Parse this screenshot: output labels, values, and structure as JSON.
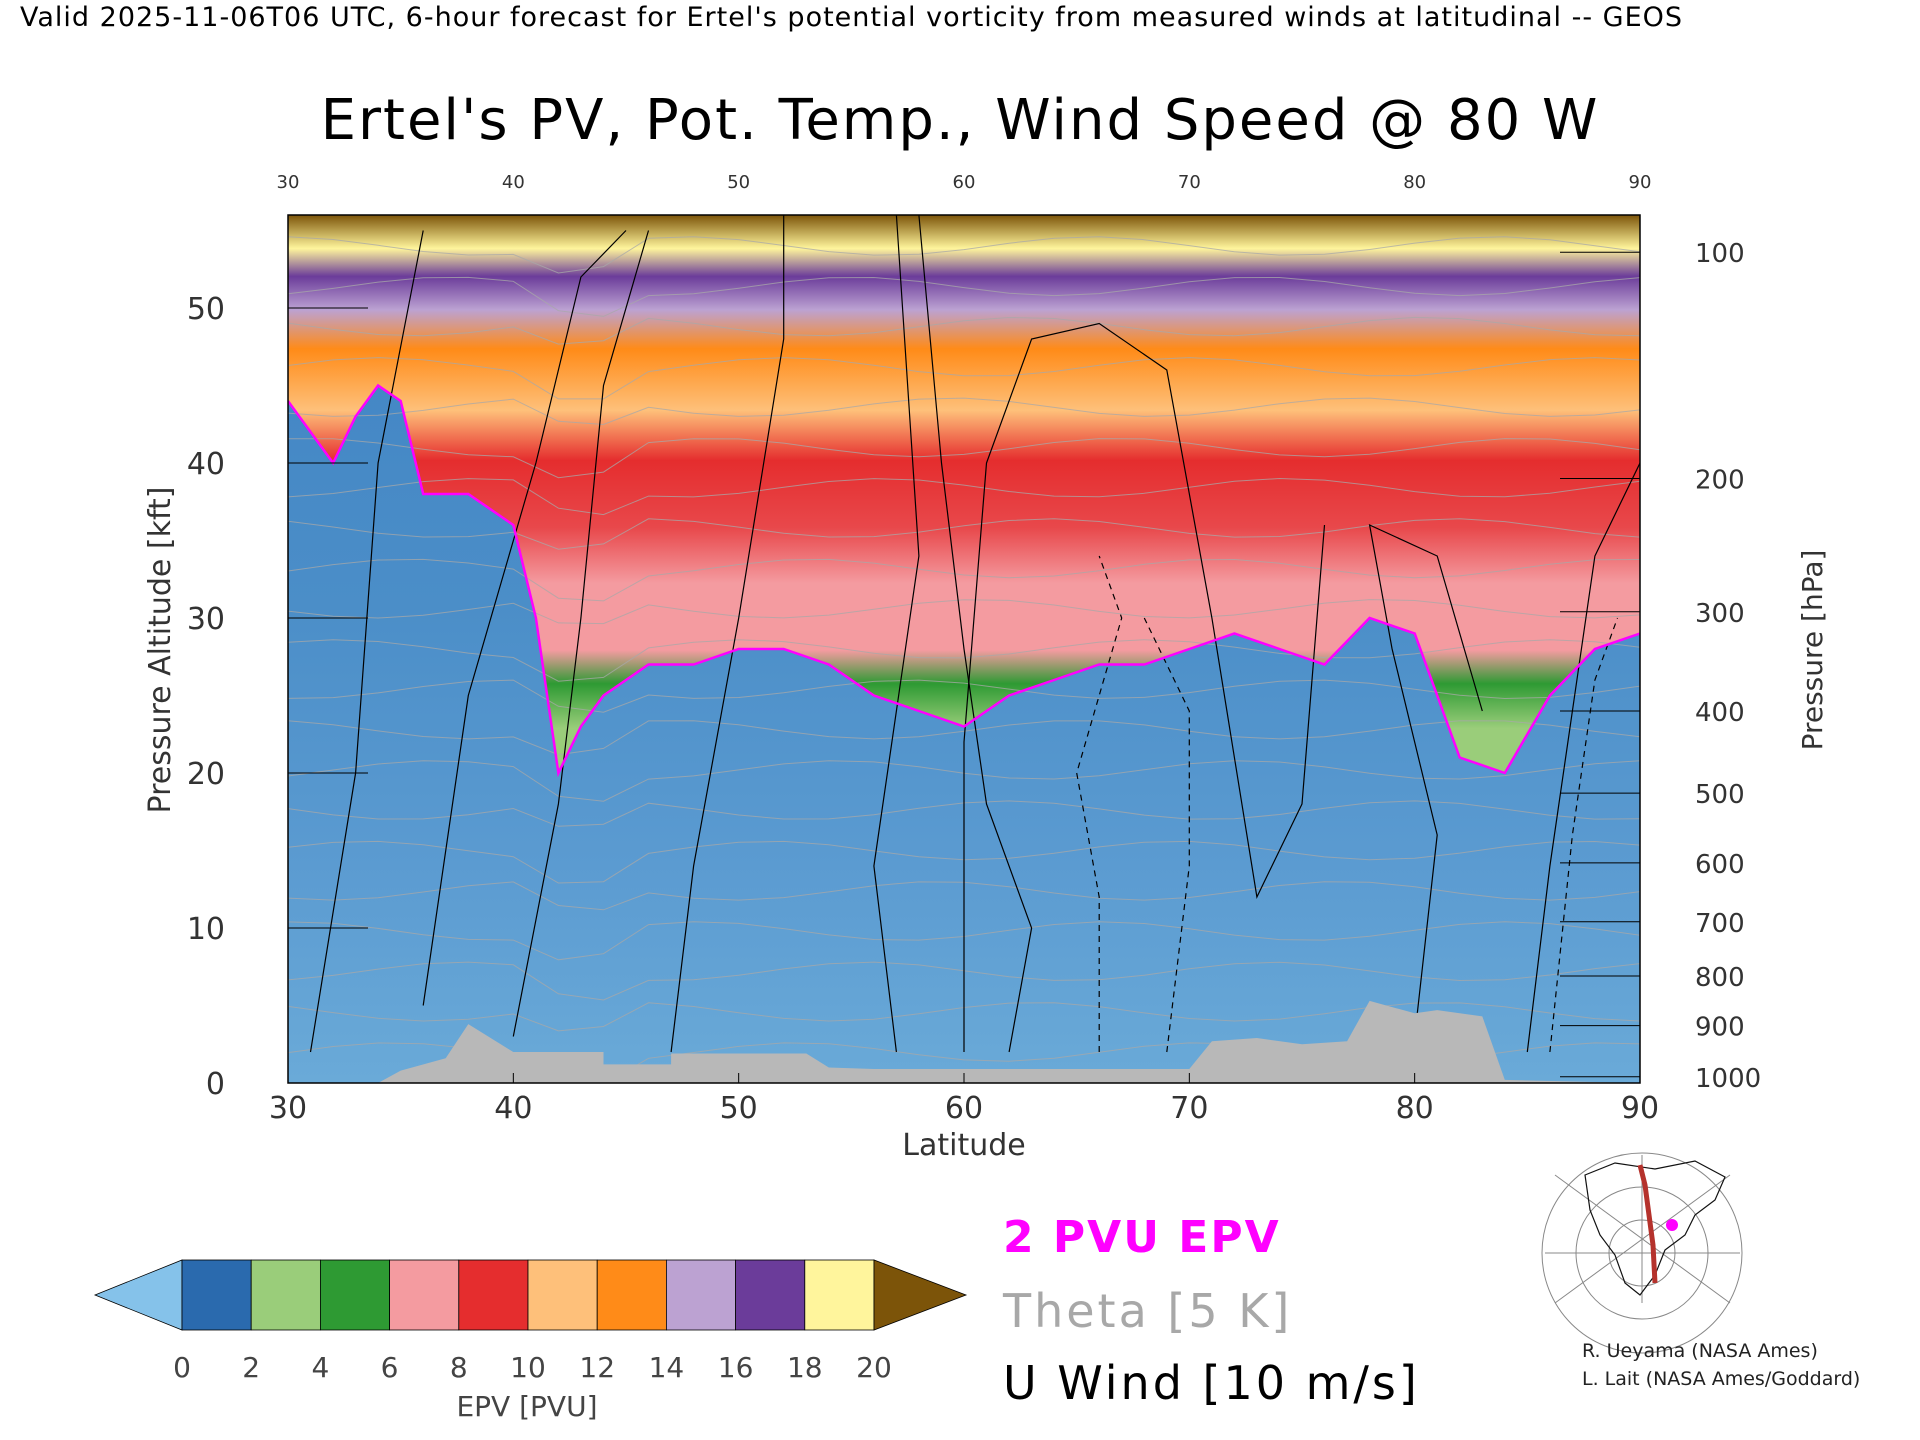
{
  "header": {
    "valid_text": "Valid 2025-11-06T06 UTC, 6-hour forecast for Ertel's potential vorticity from measured winds at latitudinal -- GEOS"
  },
  "chart_data": {
    "type": "heatmap",
    "title": "Ertel's PV, Pot. Temp., Wind Speed @ 80 W",
    "xlabel": "Latitude",
    "ylabel": "Pressure Altitude [kft]",
    "y2label": "Pressure [hPa]",
    "xlim": [
      30,
      90
    ],
    "ylim": [
      0,
      56
    ],
    "x_ticks": [
      "30",
      "40",
      "50",
      "60",
      "70",
      "80",
      "90"
    ],
    "y_ticks": [
      "0",
      "10",
      "20",
      "30",
      "40",
      "50"
    ],
    "y_tick_values": [
      0,
      10,
      20,
      30,
      40,
      50
    ],
    "pressure_ticks": [
      {
        "label": "100",
        "kft": 53.6
      },
      {
        "label": "200",
        "kft": 39.0
      },
      {
        "label": "300",
        "kft": 30.4
      },
      {
        "label": "400",
        "kft": 24.0
      },
      {
        "label": "500",
        "kft": 18.7
      },
      {
        "label": "600",
        "kft": 14.2
      },
      {
        "label": "700",
        "kft": 10.4
      },
      {
        "label": "800",
        "kft": 6.9
      },
      {
        "label": "900",
        "kft": 3.7
      },
      {
        "label": "1000",
        "kft": 0.4
      }
    ],
    "pv_2pvu_contour": {
      "lat": [
        30,
        32,
        33,
        34,
        35,
        36,
        38,
        40,
        41,
        42,
        43,
        44,
        46,
        48,
        50,
        52,
        54,
        56,
        58,
        60,
        62,
        64,
        66,
        68,
        70,
        72,
        74,
        76,
        78,
        80,
        82,
        84,
        86,
        88,
        90
      ],
      "kft": [
        44,
        40,
        43,
        45,
        44,
        38,
        38,
        36,
        30,
        20,
        23,
        25,
        27,
        27,
        28,
        28,
        27,
        25,
        24,
        23,
        25,
        26,
        27,
        27,
        28,
        29,
        28,
        27,
        30,
        29,
        21,
        20,
        25,
        28,
        29
      ]
    },
    "colorbar": {
      "label": "EPV [PVU]",
      "ticks": [
        "0",
        "2",
        "4",
        "6",
        "8",
        "10",
        "12",
        "14",
        "16",
        "18",
        "20"
      ],
      "colors": [
        "#85c2ea",
        "#2a6aae",
        "#9acd7a",
        "#2e9a33",
        "#f49ba0",
        "#e52d2e",
        "#fec07a",
        "#ff8b18",
        "#bca2d2",
        "#6b3c9a",
        "#fff59c",
        "#7c5409"
      ]
    },
    "legend": {
      "pv": "2 PVU EPV",
      "theta": "Theta [5 K]",
      "u": "U Wind [10 m/s]"
    },
    "colors": {
      "pv_contour": "#ff00ff",
      "theta": "#a8a8a8",
      "wind": "#000000",
      "topography": "#b8b8b8"
    }
  },
  "credits": {
    "line1": "R. Ueyama (NASA Ames)",
    "line2": "L. Lait (NASA Ames/Goddard)"
  }
}
